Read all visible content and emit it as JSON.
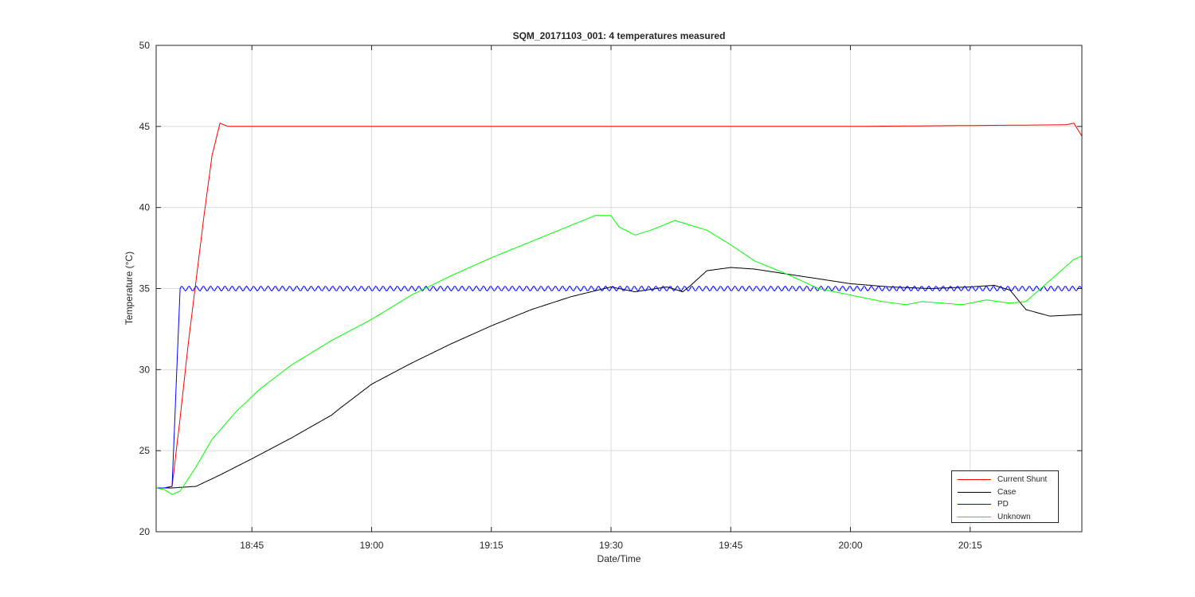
{
  "chart_data": {
    "type": "line",
    "title": "SQM_20171103_001: 4 temperatures measured",
    "xlabel": "Date/Time",
    "ylabel": "Temperature (°C)",
    "xlim": [
      "18:33",
      "20:29"
    ],
    "ylim": [
      20,
      50
    ],
    "x_ticks": [
      "18:45",
      "19:00",
      "19:15",
      "19:30",
      "19:45",
      "20:00",
      "20:15"
    ],
    "y_ticks": [
      20,
      25,
      30,
      35,
      40,
      45,
      50
    ],
    "grid": true,
    "legend_position": "bottom-right",
    "series": [
      {
        "name": "Current Shunt",
        "color": "#ff0000",
        "x": [
          "18:33",
          "18:34",
          "18:35",
          "18:36",
          "18:37",
          "18:38",
          "18:39",
          "18:40",
          "18:41",
          "18:42",
          "19:00",
          "19:30",
          "20:00",
          "20:27",
          "20:28",
          "20:29"
        ],
        "y": [
          22.7,
          22.7,
          22.8,
          27.0,
          31.5,
          35.5,
          39.5,
          43.2,
          45.2,
          45.0,
          45.0,
          45.0,
          45.0,
          45.1,
          45.2,
          44.4
        ],
        "oscillation": 0.15
      },
      {
        "name": "Case",
        "color": "#000000",
        "x": [
          "18:33",
          "18:35",
          "18:38",
          "18:41",
          "18:45",
          "18:50",
          "18:55",
          "18:56",
          "19:00",
          "19:05",
          "19:10",
          "19:15",
          "19:20",
          "19:25",
          "19:30",
          "19:33",
          "19:37",
          "19:39",
          "19:40",
          "19:42",
          "19:45",
          "19:48",
          "19:52",
          "19:56",
          "20:00",
          "20:05",
          "20:10",
          "20:15",
          "20:18",
          "20:20",
          "20:22",
          "20:25",
          "20:29"
        ],
        "y": [
          22.7,
          22.7,
          22.8,
          23.5,
          24.5,
          25.8,
          27.2,
          27.6,
          29.1,
          30.4,
          31.6,
          32.7,
          33.7,
          34.5,
          35.1,
          34.8,
          35.1,
          34.8,
          35.2,
          36.1,
          36.3,
          36.2,
          35.9,
          35.6,
          35.3,
          35.1,
          35.0,
          35.1,
          35.2,
          34.9,
          33.7,
          33.3,
          33.4
        ]
      },
      {
        "name": "PD",
        "color": "#0000ff",
        "x": [
          "18:33",
          "18:34",
          "18:35",
          "18:36",
          "19:00",
          "19:30",
          "20:00",
          "20:29"
        ],
        "y": [
          22.7,
          22.7,
          22.8,
          35.0,
          35.0,
          35.0,
          35.0,
          35.0
        ],
        "oscillation": 0.15
      },
      {
        "name": "Unknown",
        "color": "#00ff00",
        "x": [
          "18:33",
          "18:34",
          "18:35",
          "18:36",
          "18:38",
          "18:40",
          "18:43",
          "18:46",
          "18:50",
          "18:55",
          "19:00",
          "19:05",
          "19:10",
          "19:15",
          "19:20",
          "19:25",
          "19:28",
          "19:30",
          "19:31",
          "19:33",
          "19:35",
          "19:37",
          "19:38",
          "19:40",
          "19:42",
          "19:45",
          "19:48",
          "19:52",
          "19:56",
          "20:00",
          "20:04",
          "20:07",
          "20:09",
          "20:14",
          "20:17",
          "20:20",
          "20:22",
          "20:25",
          "20:28",
          "20:29"
        ],
        "y": [
          22.7,
          22.6,
          22.3,
          22.5,
          24.0,
          25.7,
          27.4,
          28.8,
          30.3,
          31.8,
          33.1,
          34.6,
          35.8,
          36.9,
          37.9,
          38.9,
          39.5,
          39.5,
          38.8,
          38.3,
          38.6,
          39.0,
          39.2,
          38.9,
          38.6,
          37.7,
          36.7,
          35.9,
          35.0,
          34.6,
          34.2,
          34.0,
          34.2,
          34.0,
          34.3,
          34.1,
          34.2,
          35.5,
          36.8,
          37.0
        ]
      }
    ]
  }
}
